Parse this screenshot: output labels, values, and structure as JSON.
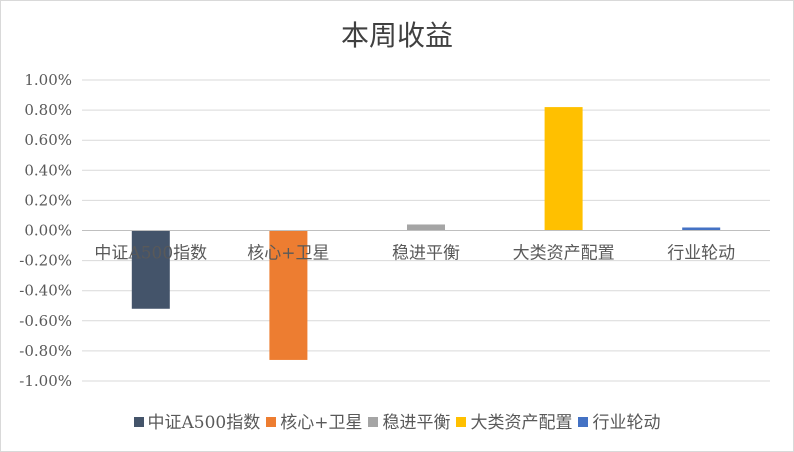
{
  "chart_data": {
    "type": "bar",
    "title": "本周收益",
    "categories": [
      "中证A500指数",
      "核心+卫星",
      "稳进平衡",
      "大类资产配置",
      "行业轮动"
    ],
    "values": [
      -0.52,
      -0.86,
      0.04,
      0.82,
      0.02
    ],
    "colors": [
      "#44546a",
      "#ed7d31",
      "#a5a5a5",
      "#ffc000",
      "#4472c4"
    ],
    "ylim": [
      -1.0,
      1.0
    ],
    "yticks": [
      1.0,
      0.8,
      0.6,
      0.4,
      0.2,
      0.0,
      -0.2,
      -0.4,
      -0.6,
      -0.8,
      -1.0
    ],
    "ytick_labels": [
      "1.00%",
      "0.80%",
      "0.60%",
      "0.40%",
      "0.20%",
      "0.00%",
      "-0.20%",
      "-0.40%",
      "-0.60%",
      "-0.80%",
      "-1.00%"
    ],
    "grid": true,
    "legend": "bottom",
    "xlabel": "",
    "ylabel": ""
  }
}
